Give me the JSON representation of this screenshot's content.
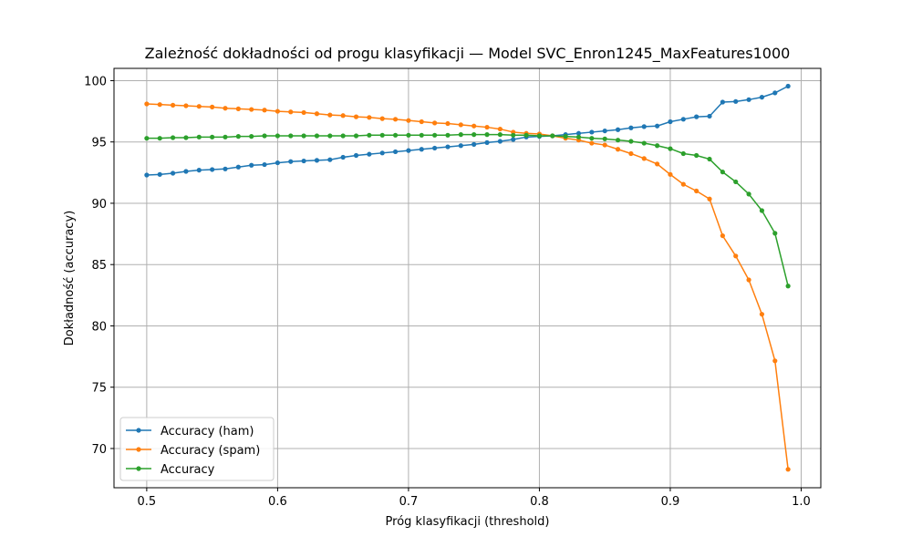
{
  "chart_data": {
    "type": "line",
    "title": "Zależność dokładności od progu klasyfikacji — Model SVC_Enron1245_MaxFeatures1000",
    "xlabel": "Próg klasyfikacji (threshold)",
    "ylabel": "Dokładność (accuracy)",
    "xlim": [
      0.475,
      1.015
    ],
    "ylim": [
      66.8,
      101.0
    ],
    "x_ticks": [
      0.5,
      0.6,
      0.7,
      0.8,
      0.9,
      1.0
    ],
    "x_tick_labels": [
      "0.5",
      "0.6",
      "0.7",
      "0.8",
      "0.9",
      "1.0"
    ],
    "y_ticks": [
      70,
      75,
      80,
      85,
      90,
      95,
      100
    ],
    "y_tick_labels": [
      "70",
      "75",
      "80",
      "85",
      "90",
      "95",
      "100"
    ],
    "grid": true,
    "legend_position": "lower-left",
    "x": [
      0.5,
      0.51,
      0.52,
      0.53,
      0.54,
      0.55,
      0.56,
      0.57,
      0.58,
      0.59,
      0.6,
      0.61,
      0.62,
      0.63,
      0.64,
      0.65,
      0.66,
      0.67,
      0.68,
      0.69,
      0.7,
      0.71,
      0.72,
      0.73,
      0.74,
      0.75,
      0.76,
      0.77,
      0.78,
      0.79,
      0.8,
      0.81,
      0.82,
      0.83,
      0.84,
      0.85,
      0.86,
      0.87,
      0.88,
      0.89,
      0.9,
      0.91,
      0.92,
      0.93,
      0.94,
      0.95,
      0.96,
      0.97,
      0.98,
      0.99
    ],
    "series": [
      {
        "name": "Accuracy (ham)",
        "color": "#1f77b4",
        "values": [
          92.3,
          92.35,
          92.45,
          92.6,
          92.7,
          92.75,
          92.8,
          92.95,
          93.1,
          93.15,
          93.3,
          93.4,
          93.45,
          93.5,
          93.55,
          93.75,
          93.9,
          94.0,
          94.1,
          94.2,
          94.3,
          94.4,
          94.5,
          94.6,
          94.7,
          94.8,
          94.95,
          95.05,
          95.2,
          95.4,
          95.45,
          95.5,
          95.6,
          95.7,
          95.8,
          95.9,
          96.0,
          96.15,
          96.25,
          96.3,
          96.65,
          96.85,
          97.05,
          97.1,
          98.25,
          98.3,
          98.45,
          98.65,
          99.0,
          99.55
        ]
      },
      {
        "name": "Accuracy (spam)",
        "color": "#ff7f0e",
        "values": [
          98.1,
          98.05,
          98.0,
          97.95,
          97.9,
          97.85,
          97.75,
          97.7,
          97.65,
          97.6,
          97.5,
          97.45,
          97.4,
          97.3,
          97.2,
          97.15,
          97.05,
          97.0,
          96.9,
          96.85,
          96.75,
          96.65,
          96.55,
          96.5,
          96.4,
          96.3,
          96.2,
          96.05,
          95.8,
          95.7,
          95.65,
          95.5,
          95.3,
          95.15,
          94.9,
          94.75,
          94.4,
          94.05,
          93.65,
          93.2,
          92.35,
          91.55,
          91.0,
          90.35,
          87.35,
          85.7,
          83.75,
          80.95,
          77.15,
          68.3
        ]
      },
      {
        "name": "Accuracy",
        "color": "#2ca02c",
        "values": [
          95.3,
          95.3,
          95.35,
          95.35,
          95.4,
          95.4,
          95.4,
          95.45,
          95.45,
          95.5,
          95.5,
          95.5,
          95.5,
          95.5,
          95.5,
          95.5,
          95.5,
          95.55,
          95.55,
          95.55,
          95.55,
          95.55,
          95.55,
          95.55,
          95.6,
          95.6,
          95.6,
          95.6,
          95.55,
          95.55,
          95.5,
          95.5,
          95.45,
          95.4,
          95.3,
          95.25,
          95.15,
          95.05,
          94.9,
          94.7,
          94.45,
          94.05,
          93.9,
          93.6,
          92.55,
          91.75,
          90.75,
          89.4,
          87.55,
          83.25
        ]
      }
    ]
  }
}
